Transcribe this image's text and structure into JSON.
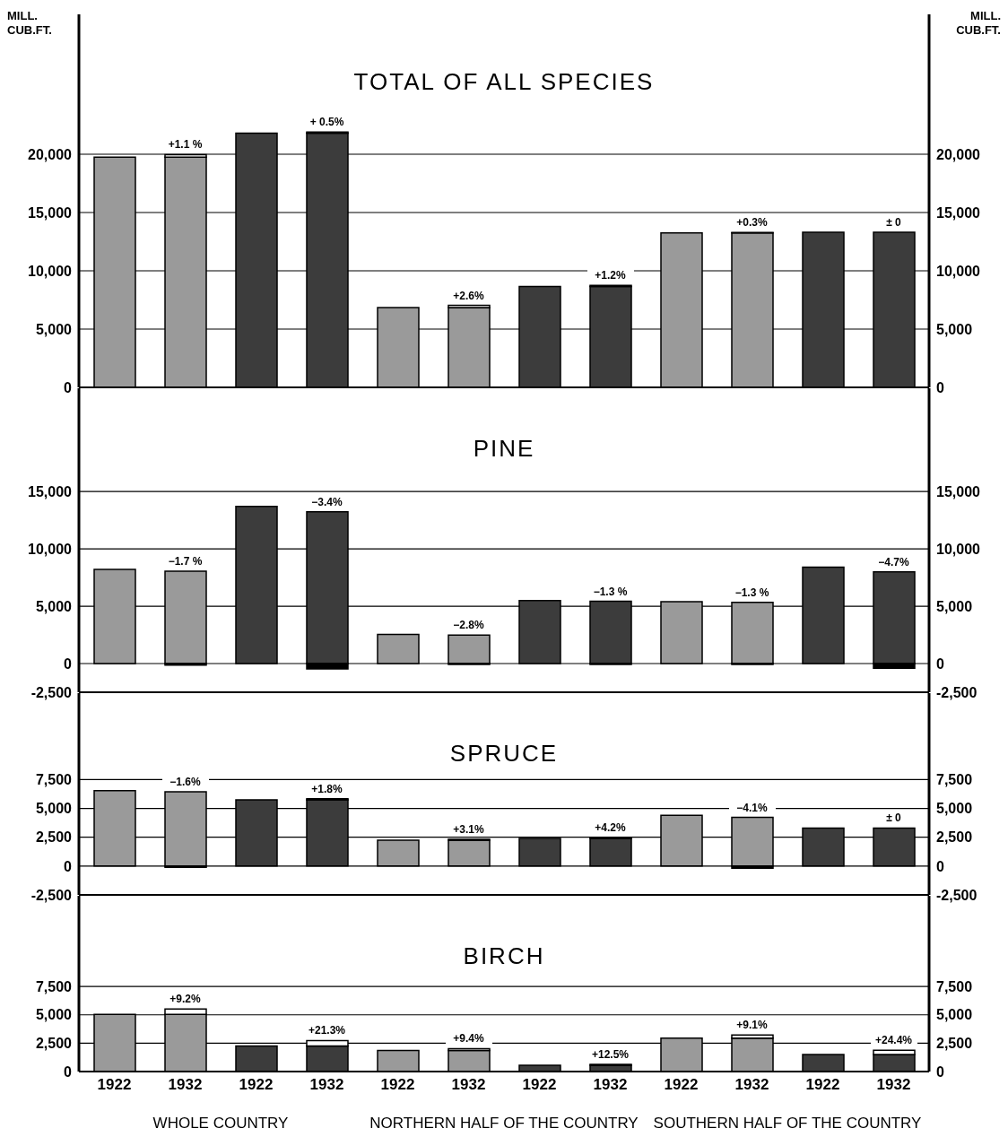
{
  "chart_data": [
    {
      "type": "bar",
      "title": "TOTAL OF ALL SPECIES",
      "ylabel": "MILL. CUB.FT.",
      "y2label": "MILL. CUB.FT.",
      "categories": [
        "1922",
        "1932",
        "1922",
        "1932",
        "1922",
        "1932",
        "1922",
        "1932",
        "1922",
        "1932",
        "1922",
        "1932"
      ],
      "stacked": true,
      "grid": "y",
      "tick_labels": "y",
      "ylim": [
        0,
        32000
      ],
      "yticks": [
        {
          "value": 0,
          "label": "0"
        },
        {
          "value": 5000,
          "label": "5,000"
        },
        {
          "value": 10000,
          "label": "10,000"
        },
        {
          "value": 15000,
          "label": "15,000"
        },
        {
          "value": 20000,
          "label": "20,000"
        }
      ],
      "y2lim": [
        0,
        32000
      ],
      "y2ticks": [
        {
          "value": 0,
          "label": "0"
        },
        {
          "value": 5000,
          "label": "5,000"
        },
        {
          "value": 10000,
          "label": "10,000"
        },
        {
          "value": 15000,
          "label": "15,000"
        },
        {
          "value": 20000,
          "label": "20,000"
        }
      ],
      "annotations": [
        "+1.1 %",
        "+ 0.5%",
        "+2.6%",
        "+1.2%",
        "+0.3%",
        "± 0"
      ],
      "series": [
        {
          "color": "#9a9a9a",
          "values": [
            19750,
            19750,
            null,
            null,
            6850,
            6850,
            null,
            null,
            13250,
            13250,
            null,
            null
          ]
        },
        {
          "color": "#3c3c3c",
          "values": [
            null,
            null,
            21800,
            21800,
            null,
            null,
            8650,
            8650,
            null,
            null,
            13300,
            13300
          ]
        },
        {
          "color": "#ffffff",
          "values": [
            null,
            220,
            null,
            110,
            null,
            180,
            null,
            100,
            null,
            40,
            null,
            null
          ]
        }
      ]
    },
    {
      "type": "bar",
      "title": "PINE",
      "categories": [
        "1922",
        "1932",
        "1922",
        "1932",
        "1922",
        "1932",
        "1922",
        "1932",
        "1922",
        "1932",
        "1922",
        "1932"
      ],
      "stacked": true,
      "grid": "y",
      "tick_labels": "y",
      "ylim": [
        -2500,
        24000
      ],
      "yticks": [
        {
          "value": -2500,
          "label": "-2,500"
        },
        {
          "value": 0,
          "label": "0"
        },
        {
          "value": 5000,
          "label": "5,000"
        },
        {
          "value": 10000,
          "label": "10,000"
        },
        {
          "value": 15000,
          "label": "15,000"
        }
      ],
      "y2lim": [
        -2500,
        24000
      ],
      "y2ticks": [
        {
          "value": -2500,
          "label": "-2,500"
        },
        {
          "value": 0,
          "label": "0"
        },
        {
          "value": 5000,
          "label": "5,000"
        },
        {
          "value": 10000,
          "label": "10,000"
        },
        {
          "value": 15000,
          "label": "15,000"
        }
      ],
      "annotations": [
        "−1.7 %",
        "−3.4%",
        "−2.8%",
        "−1.3 %",
        "−1.3 %",
        "−4.7%"
      ],
      "series": [
        {
          "color": "#9a9a9a",
          "values": [
            8200,
            8060,
            null,
            null,
            2550,
            2480,
            null,
            null,
            5400,
            5330,
            null,
            null
          ]
        },
        {
          "color": "#3c3c3c",
          "values": [
            null,
            null,
            13700,
            13230,
            null,
            null,
            5500,
            5430,
            null,
            null,
            8400,
            8000
          ]
        },
        {
          "color": "#000000",
          "values": [
            null,
            -140,
            null,
            -470,
            null,
            -70,
            null,
            -70,
            null,
            -70,
            null,
            -400
          ]
        }
      ]
    },
    {
      "type": "bar",
      "title": "SPRUCE",
      "categories": [
        "1922",
        "1932",
        "1922",
        "1932",
        "1922",
        "1932",
        "1922",
        "1932",
        "1922",
        "1932",
        "1922",
        "1932"
      ],
      "stacked": true,
      "grid": "y",
      "tick_labels": "y",
      "ylim": [
        -2500,
        15000
      ],
      "yticks": [
        {
          "value": -2500,
          "label": "-2,500"
        },
        {
          "value": 0,
          "label": "0"
        },
        {
          "value": 2500,
          "label": "2,500"
        },
        {
          "value": 5000,
          "label": "5,000"
        },
        {
          "value": 7500,
          "label": "7,500"
        }
      ],
      "y2lim": [
        -2500,
        15000
      ],
      "y2ticks": [
        {
          "value": -2500,
          "label": "-2,500"
        },
        {
          "value": 0,
          "label": "0"
        },
        {
          "value": 2500,
          "label": "2,500"
        },
        {
          "value": 5000,
          "label": "5,000"
        },
        {
          "value": 7500,
          "label": "7,500"
        }
      ],
      "annotations": [
        "−1.6%",
        "+1.8%",
        "+3.1%",
        "+4.2%",
        "−4.1%",
        "± 0"
      ],
      "series": [
        {
          "color": "#9a9a9a",
          "values": [
            6550,
            6450,
            null,
            null,
            2250,
            2250,
            null,
            null,
            4400,
            4220,
            null,
            null
          ]
        },
        {
          "color": "#3c3c3c",
          "values": [
            null,
            null,
            5750,
            5750,
            null,
            null,
            2400,
            2400,
            null,
            null,
            3300,
            3300
          ]
        },
        {
          "color": "#ffffff",
          "values": [
            null,
            null,
            null,
            100,
            null,
            70,
            null,
            100,
            null,
            null,
            null,
            null
          ]
        },
        {
          "color": "#000000",
          "values": [
            null,
            -100,
            null,
            null,
            null,
            null,
            null,
            null,
            null,
            -180,
            null,
            null
          ]
        }
      ]
    },
    {
      "type": "bar",
      "title": "BIRCH",
      "categories": [
        "1922",
        "1932",
        "1922",
        "1932",
        "1922",
        "1932",
        "1922",
        "1932",
        "1922",
        "1932",
        "1922",
        "1932"
      ],
      "stacked": true,
      "grid": "y",
      "ylim": [
        0,
        15500
      ],
      "yticks": [
        {
          "value": 0,
          "label": "0"
        },
        {
          "value": 2500,
          "label": "2,500"
        },
        {
          "value": 5000,
          "label": "5,000"
        },
        {
          "value": 7500,
          "label": "7,500"
        }
      ],
      "y2lim": [
        0,
        15500
      ],
      "y2ticks": [
        {
          "value": 0,
          "label": "0"
        },
        {
          "value": 2500,
          "label": "2,500"
        },
        {
          "value": 5000,
          "label": "5,000"
        },
        {
          "value": 7500,
          "label": "7,500"
        }
      ],
      "annotations": [
        "+9.2%",
        "+21.3%",
        "+9.4%",
        "+12.5%",
        "+9.1%",
        "+24.4%",
        "WHOLE COUNTRY",
        "NORTHERN HALF OF THE COUNTRY",
        "SOUTHERN HALF OF THE COUNTRY"
      ],
      "series": [
        {
          "color": "#9a9a9a",
          "values": [
            5050,
            5050,
            null,
            null,
            1850,
            1850,
            null,
            null,
            2950,
            2950,
            null,
            null
          ]
        },
        {
          "color": "#3c3c3c",
          "values": [
            null,
            null,
            2250,
            2250,
            null,
            null,
            560,
            560,
            null,
            null,
            1500,
            1500
          ]
        },
        {
          "color": "#ffffff",
          "values": [
            null,
            460,
            null,
            480,
            null,
            170,
            null,
            70,
            null,
            270,
            null,
            370
          ]
        }
      ]
    }
  ]
}
